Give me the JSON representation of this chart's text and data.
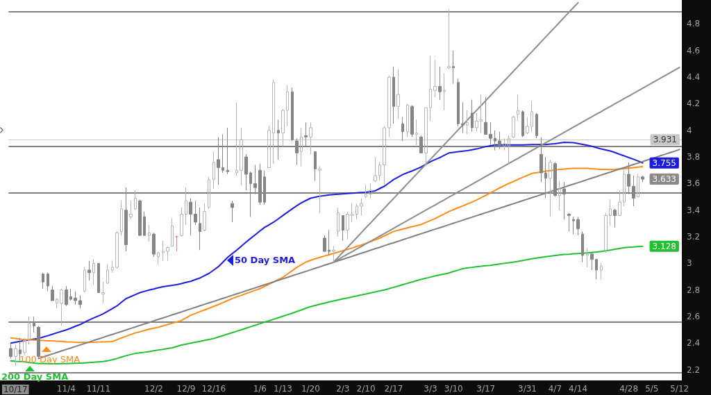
{
  "chart_data": {
    "type": "candlestick",
    "categories": [
      null,
      "10/17",
      null,
      null,
      null,
      null,
      null,
      null,
      null,
      null,
      null,
      null,
      "11/4",
      null,
      null,
      null,
      null,
      null,
      null,
      "11/11",
      null,
      null,
      null,
      null,
      null,
      null,
      null,
      null,
      null,
      null,
      null,
      "12/2",
      null,
      null,
      null,
      null,
      null,
      null,
      "12/9",
      null,
      null,
      null,
      null,
      null,
      "12/16",
      null,
      null,
      null,
      null,
      null,
      null,
      null,
      null,
      null,
      "1/6",
      null,
      null,
      null,
      null,
      "1/13",
      null,
      null,
      null,
      null,
      null,
      "1/20",
      null,
      null,
      null,
      null,
      null,
      null,
      "2/3",
      null,
      null,
      null,
      null,
      "2/10",
      null,
      null,
      null,
      null,
      null,
      "2/17",
      null,
      null,
      null,
      null,
      null,
      null,
      null,
      "3/3",
      null,
      null,
      null,
      null,
      "3/10",
      null,
      null,
      null,
      null,
      null,
      null,
      "3/17",
      null,
      null,
      null,
      null,
      null,
      null,
      null,
      null,
      "3/31",
      null,
      null,
      null,
      null,
      null,
      "4/7",
      null,
      null,
      null,
      null,
      "4/14",
      null,
      null,
      null,
      null,
      null,
      null,
      null,
      null,
      null,
      null,
      "4/28",
      null,
      null,
      null,
      null,
      "5/5",
      null,
      null,
      null,
      null,
      null,
      "5/12"
    ],
    "ohlc": [
      [
        2.36,
        2.4,
        2.285,
        2.3
      ],
      [
        2.3,
        2.39,
        2.23,
        2.36
      ],
      [
        2.35,
        2.44,
        2.27,
        2.32
      ],
      [
        2.33,
        2.44,
        2.31,
        2.42
      ],
      [
        2.42,
        2.6,
        2.39,
        2.55
      ],
      [
        2.55,
        2.6,
        2.48,
        2.53
      ],
      [
        2.52,
        2.53,
        2.285,
        2.3
      ],
      [
        2.92,
        2.93,
        2.81,
        2.86
      ],
      [
        2.92,
        2.93,
        2.79,
        2.83
      ],
      [
        2.8,
        2.83,
        2.72,
        2.72
      ],
      [
        2.7,
        2.74,
        2.66,
        2.73
      ],
      [
        2.7,
        2.81,
        2.53,
        2.8
      ],
      [
        2.8,
        2.83,
        2.68,
        2.69
      ],
      [
        2.75,
        2.81,
        2.72,
        2.73
      ],
      [
        2.74,
        2.79,
        2.69,
        2.72
      ],
      [
        2.72,
        2.76,
        2.66,
        2.69
      ],
      [
        2.79,
        2.97,
        2.78,
        2.95
      ],
      [
        2.95,
        3.02,
        2.87,
        2.93
      ],
      [
        2.93,
        3.03,
        2.84,
        3.0
      ],
      [
        3.0,
        3.0,
        2.78,
        2.78
      ],
      [
        2.77,
        2.86,
        2.7,
        2.78
      ],
      [
        2.85,
        2.99,
        2.85,
        2.95
      ],
      [
        2.95,
        3.02,
        2.93,
        2.97
      ],
      [
        2.97,
        3.24,
        2.96,
        3.23
      ],
      [
        3.24,
        3.47,
        3.21,
        3.41
      ],
      [
        3.4,
        3.57,
        3.09,
        3.14
      ],
      [
        3.35,
        3.47,
        3.33,
        3.37
      ],
      [
        3.41,
        3.55,
        3.4,
        3.49
      ],
      [
        3.47,
        3.48,
        3.21,
        3.21
      ],
      [
        3.35,
        3.39,
        3.21,
        3.21
      ],
      [
        3.21,
        3.29,
        3.16,
        3.23
      ],
      [
        3.22,
        3.23,
        3.05,
        3.07
      ],
      [
        3.05,
        3.09,
        2.99,
        3.08
      ],
      [
        3.08,
        3.17,
        3.02,
        3.09
      ],
      [
        3.09,
        3.13,
        3.02,
        3.12
      ],
      [
        3.13,
        3.34,
        3.13,
        3.28
      ],
      [
        3.2,
        3.21,
        3.09,
        3.2
      ],
      [
        3.21,
        3.42,
        3.2,
        3.37
      ],
      [
        3.37,
        3.57,
        3.29,
        3.47
      ],
      [
        3.46,
        3.49,
        3.21,
        3.37
      ],
      [
        3.37,
        3.47,
        3.29,
        3.31
      ],
      [
        3.3,
        3.42,
        3.1,
        3.24
      ],
      [
        3.25,
        3.45,
        3.24,
        3.39
      ],
      [
        3.42,
        3.65,
        3.41,
        3.63
      ],
      [
        3.63,
        3.84,
        3.56,
        3.76
      ],
      [
        3.78,
        3.95,
        3.59,
        3.72
      ],
      [
        3.72,
        3.97,
        3.68,
        3.7
      ],
      [
        3.7,
        4.02,
        3.67,
        3.69
      ],
      [
        3.45,
        3.47,
        3.31,
        3.42
      ],
      [
        3.68,
        4.21,
        3.66,
        3.7
      ],
      [
        3.7,
        4.02,
        3.59,
        3.93
      ],
      [
        3.8,
        3.82,
        3.55,
        3.67
      ],
      [
        3.68,
        3.69,
        3.35,
        3.6
      ],
      [
        3.6,
        3.74,
        3.52,
        3.57
      ],
      [
        3.7,
        3.75,
        3.44,
        3.46
      ],
      [
        3.65,
        3.7,
        3.44,
        3.46
      ],
      [
        3.72,
        4.03,
        3.72,
        4.0
      ],
      [
        3.98,
        4.38,
        3.75,
        4.36
      ],
      [
        4.0,
        4.08,
        3.78,
        3.98
      ],
      [
        3.98,
        4.16,
        3.88,
        4.15
      ],
      [
        4.15,
        4.34,
        4.03,
        4.29
      ],
      [
        4.29,
        4.32,
        3.92,
        3.93
      ],
      [
        3.92,
        3.94,
        3.74,
        3.83
      ],
      [
        3.84,
        4.02,
        3.73,
        3.95
      ],
      [
        3.96,
        4.06,
        3.88,
        3.95
      ],
      [
        3.95,
        4.06,
        3.82,
        4.02
      ],
      [
        3.84,
        3.84,
        3.62,
        3.71
      ],
      [
        3.7,
        3.73,
        3.38,
        3.71
      ],
      [
        3.19,
        3.21,
        3.09,
        3.09
      ],
      [
        3.1,
        3.25,
        3.06,
        3.09
      ],
      [
        3.09,
        3.13,
        3.01,
        3.1
      ],
      [
        3.24,
        3.42,
        3.2,
        3.38
      ],
      [
        3.36,
        3.36,
        3.17,
        3.25
      ],
      [
        3.25,
        3.39,
        3.18,
        3.37
      ],
      [
        3.36,
        3.45,
        3.31,
        3.37
      ],
      [
        3.37,
        3.45,
        3.33,
        3.43
      ],
      [
        3.43,
        3.49,
        3.36,
        3.45
      ],
      [
        3.5,
        3.59,
        3.49,
        3.52
      ],
      [
        3.52,
        3.6,
        3.49,
        3.55
      ],
      [
        3.62,
        3.8,
        3.61,
        3.66
      ],
      [
        3.66,
        3.76,
        3.62,
        3.74
      ],
      [
        3.74,
        4.03,
        3.59,
        4.02
      ],
      [
        4.02,
        4.41,
        3.95,
        4.4
      ],
      [
        4.4,
        4.48,
        4.05,
        4.18
      ],
      [
        4.18,
        4.46,
        4.09,
        4.27
      ],
      [
        4.05,
        4.1,
        3.92,
        3.99
      ],
      [
        3.99,
        4.2,
        3.95,
        4.19
      ],
      [
        4.18,
        4.19,
        3.95,
        3.97
      ],
      [
        3.97,
        4.08,
        3.89,
        3.98
      ],
      [
        3.95,
        3.96,
        3.83,
        3.83
      ],
      [
        3.83,
        4.17,
        3.73,
        4.17
      ],
      [
        4.17,
        4.56,
        4.07,
        4.31
      ],
      [
        4.3,
        4.53,
        4.25,
        4.33
      ],
      [
        4.33,
        4.48,
        4.23,
        4.29
      ],
      [
        4.29,
        4.43,
        4.15,
        4.3
      ],
      [
        4.47,
        4.91,
        4.46,
        4.48
      ],
      [
        4.48,
        4.6,
        4.35,
        4.47
      ],
      [
        4.36,
        4.39,
        4.03,
        4.05
      ],
      [
        4.05,
        4.21,
        3.98,
        4.04
      ],
      [
        4.04,
        4.15,
        3.97,
        4.06
      ],
      [
        4.13,
        4.23,
        3.99,
        4.02
      ],
      [
        4.02,
        4.13,
        3.99,
        4.07
      ],
      [
        4.07,
        4.27,
        3.98,
        4.08
      ],
      [
        4.06,
        4.25,
        3.97,
        3.97
      ],
      [
        3.97,
        4.06,
        3.89,
        3.94
      ],
      [
        3.94,
        4.0,
        3.85,
        3.92
      ],
      [
        3.92,
        3.99,
        3.86,
        3.89
      ],
      [
        3.88,
        3.94,
        3.85,
        3.9
      ],
      [
        3.88,
        3.96,
        3.75,
        3.94
      ],
      [
        3.95,
        4.11,
        3.94,
        4.1
      ],
      [
        4.12,
        4.27,
        4.07,
        4.15
      ],
      [
        4.14,
        4.15,
        3.95,
        3.96
      ],
      [
        3.98,
        4.1,
        3.97,
        4.03
      ],
      [
        4.03,
        4.22,
        3.99,
        4.14
      ],
      [
        4.12,
        4.13,
        3.94,
        3.96
      ],
      [
        3.82,
        3.95,
        3.61,
        3.68
      ],
      [
        3.68,
        3.8,
        3.49,
        3.64
      ],
      [
        3.64,
        3.78,
        3.35,
        3.76
      ],
      [
        3.75,
        3.76,
        3.5,
        3.51
      ],
      [
        3.51,
        3.62,
        3.4,
        3.56
      ],
      [
        3.56,
        3.61,
        3.33,
        3.52
      ],
      [
        3.37,
        3.38,
        3.24,
        3.36
      ],
      [
        3.33,
        3.35,
        3.22,
        3.32
      ],
      [
        3.33,
        3.35,
        3.21,
        3.26
      ],
      [
        3.22,
        3.24,
        3.01,
        3.06
      ],
      [
        3.06,
        3.11,
        2.97,
        3.07
      ],
      [
        3.07,
        3.09,
        2.95,
        3.03
      ],
      [
        3.03,
        3.03,
        2.88,
        2.95
      ],
      [
        2.95,
        3.0,
        2.88,
        2.98
      ],
      [
        3.1,
        3.38,
        3.08,
        3.36
      ],
      [
        3.36,
        3.48,
        3.28,
        3.41
      ],
      [
        3.4,
        3.41,
        3.27,
        3.36
      ],
      [
        3.36,
        3.55,
        3.36,
        3.46
      ],
      [
        3.46,
        3.7,
        3.43,
        3.67
      ],
      [
        3.67,
        3.76,
        3.52,
        3.58
      ],
      [
        3.58,
        3.66,
        3.43,
        3.49
      ],
      [
        3.5,
        3.67,
        3.5,
        3.65
      ],
      [
        3.65,
        3.66,
        3.61,
        3.633
      ],
      null,
      null,
      null,
      null,
      null,
      null,
      null,
      null
    ],
    "colors": [
      "#858585",
      "#b4b4b4",
      "#858585",
      "#b4b4b4",
      "#b4b4b4",
      "#858585",
      "#858585",
      "#858585",
      "#858585",
      "#858585",
      "#b4b4b4",
      "#b4b4b4",
      "#858585",
      "#858585",
      "#858585",
      "#858585",
      "#b4b4b4",
      "#858585",
      "#b4b4b4",
      "#858585",
      "#b4b4b4",
      "#b4b4b4",
      "#b4b4b4",
      "#b4b4b4",
      "#b4b4b4",
      "#858585",
      "#b4b4b4",
      "#b4b4b4",
      "#858585",
      "#858585",
      "#b4b4b4",
      "#858585",
      "#b4b4b4",
      "#b4b4b4",
      "#b4b4b4",
      "#b4b4b4",
      "#f07ca0",
      "#b4b4b4",
      "#b4b4b4",
      "#858585",
      "#858585",
      "#858585",
      "#b4b4b4",
      "#b4b4b4",
      "#b4b4b4",
      "#858585",
      "#858585",
      "#858585",
      "#858585",
      "#b4b4b4",
      "#b4b4b4",
      "#858585",
      "#858585",
      "#858585",
      "#858585",
      "#858585",
      "#b4b4b4",
      "#b4b4b4",
      "#858585",
      "#b4b4b4",
      "#b4b4b4",
      "#858585",
      "#858585",
      "#b4b4b4",
      "#858585",
      "#b4b4b4",
      "#858585",
      "#b4b4b4",
      "#858585",
      "#858585",
      "#b4b4b4",
      "#b4b4b4",
      "#858585",
      "#b4b4b4",
      "#b4b4b4",
      "#b4b4b4",
      "#b4b4b4",
      "#b4b4b4",
      "#b4b4b4",
      "#b4b4b4",
      "#b4b4b4",
      "#b4b4b4",
      "#b4b4b4",
      "#858585",
      "#b4b4b4",
      "#858585",
      "#b4b4b4",
      "#858585",
      "#b4b4b4",
      "#858585",
      "#b4b4b4",
      "#b4b4b4",
      "#b4b4b4",
      "#858585",
      "#b4b4b4",
      "#b4b4b4",
      "#858585",
      "#858585",
      "#858585",
      "#b4b4b4",
      "#858585",
      "#b4b4b4",
      "#b4b4b4",
      "#858585",
      "#858585",
      "#858585",
      "#858585",
      "#b4b4b4",
      "#b4b4b4",
      "#b4b4b4",
      "#b4b4b4",
      "#858585",
      "#b4b4b4",
      "#b4b4b4",
      "#858585",
      "#858585",
      "#858585",
      "#b4b4b4",
      "#858585",
      "#b4b4b4",
      "#858585",
      "#858585",
      "#858585",
      "#858585",
      "#858585",
      "#b4b4b4",
      "#858585",
      "#858585",
      "#b4b4b4",
      "#b4b4b4",
      "#b4b4b4",
      "#858585",
      "#b4b4b4",
      "#b4b4b4",
      "#858585",
      "#858585",
      "#b4b4b4",
      "#858585",
      null,
      null,
      null,
      null,
      null,
      null,
      null,
      null
    ],
    "series": [
      {
        "name": "50 Day SMA",
        "type": "line",
        "color": "#1c1cdc",
        "values": [
          2.4,
          2.407,
          2.413,
          2.42,
          2.425,
          2.43,
          2.435,
          2.446,
          2.456,
          2.467,
          2.478,
          2.489,
          2.5,
          2.513,
          2.527,
          2.54,
          2.558,
          2.575,
          2.59,
          2.605,
          2.62,
          2.64,
          2.66,
          2.68,
          2.708,
          2.735,
          2.75,
          2.765,
          2.78,
          2.79,
          2.8,
          2.808,
          2.817,
          2.825,
          2.83,
          2.835,
          2.84,
          2.848,
          2.857,
          2.865,
          2.878,
          2.89,
          2.908,
          2.925,
          2.95,
          2.975,
          3.01,
          3.045,
          3.073,
          3.1,
          3.13,
          3.16,
          3.188,
          3.215,
          3.243,
          3.27,
          3.29,
          3.31,
          3.335,
          3.36,
          3.385,
          3.41,
          3.433,
          3.455,
          3.473,
          3.49,
          3.498,
          3.505,
          3.51,
          3.515,
          3.518,
          3.52,
          3.523,
          3.525,
          3.528,
          3.53,
          3.533,
          3.535,
          3.54,
          3.545,
          3.563,
          3.58,
          3.605,
          3.63,
          3.649,
          3.668,
          3.682,
          3.695,
          3.71,
          3.725,
          3.745,
          3.765,
          3.78,
          3.795,
          3.813,
          3.83,
          3.835,
          3.84,
          3.844,
          3.848,
          3.854,
          3.86,
          3.869,
          3.878,
          3.884,
          3.89,
          3.891,
          3.892,
          3.891,
          3.89,
          3.89,
          3.891,
          3.892,
          3.893,
          3.893,
          3.893,
          3.893,
          3.897,
          3.9,
          3.905,
          3.91,
          3.909,
          3.907,
          3.901,
          3.895,
          3.888,
          3.88,
          3.87,
          3.86,
          3.853,
          3.845,
          3.833,
          3.82,
          3.808,
          3.795,
          3.783,
          3.77,
          3.755,
          null,
          null,
          null,
          null,
          null,
          null,
          null,
          null
        ],
        "value_labels": [
          null,
          null,
          null,
          null,
          null,
          null,
          null,
          null,
          null,
          null,
          null,
          null,
          null,
          null,
          null,
          null,
          null,
          null,
          null,
          null,
          null,
          null,
          null,
          null,
          null,
          null,
          null,
          null,
          null,
          null,
          null,
          null,
          null,
          null,
          null,
          null,
          null,
          null,
          null,
          null,
          null,
          null,
          null,
          null,
          null,
          null,
          null,
          null,
          null,
          null,
          null,
          null,
          null,
          null,
          null,
          null,
          null,
          null,
          null,
          null,
          null,
          null,
          null,
          null,
          null,
          null,
          null,
          null,
          null,
          null,
          null,
          null,
          null,
          null,
          null,
          null,
          null,
          null,
          null,
          null,
          null,
          null,
          null,
          null,
          null,
          null,
          null,
          null,
          null,
          null,
          null,
          null,
          null,
          null,
          null,
          null,
          null,
          null,
          null,
          null,
          null,
          null,
          null,
          null,
          null,
          null,
          null,
          null,
          null,
          null,
          null,
          null,
          null,
          null,
          null,
          null,
          null,
          null,
          null,
          null,
          null,
          null,
          null,
          null,
          null,
          null,
          null,
          null,
          null,
          null,
          null,
          null,
          null,
          null,
          null,
          null,
          null,
          "3.755",
          null,
          null,
          null,
          null,
          null,
          null,
          null,
          null
        ]
      },
      {
        "name": "100 Day SMA",
        "type": "line",
        "color": "#ff8c1a",
        "values": [
          2.44,
          2.436,
          2.431,
          2.427,
          2.426,
          2.424,
          2.422,
          2.42,
          2.418,
          2.417,
          2.415,
          2.413,
          2.41,
          2.409,
          2.407,
          2.406,
          2.406,
          2.406,
          2.407,
          2.409,
          2.41,
          2.411,
          2.412,
          2.426,
          2.44,
          2.452,
          2.465,
          2.477,
          2.486,
          2.496,
          2.505,
          2.513,
          2.52,
          2.53,
          2.54,
          2.55,
          2.56,
          2.571,
          2.59,
          2.61,
          2.623,
          2.637,
          2.65,
          2.663,
          2.677,
          2.69,
          2.705,
          2.72,
          2.735,
          2.748,
          2.76,
          2.773,
          2.785,
          2.798,
          2.81,
          2.827,
          2.843,
          2.86,
          2.878,
          2.895,
          2.92,
          2.945,
          2.97,
          2.99,
          3.01,
          3.023,
          3.035,
          3.045,
          3.055,
          3.065,
          3.075,
          3.085,
          3.095,
          3.105,
          3.115,
          3.127,
          3.138,
          3.15,
          3.163,
          3.177,
          3.19,
          3.207,
          3.223,
          3.24,
          3.249,
          3.258,
          3.267,
          3.276,
          3.284,
          3.293,
          3.308,
          3.322,
          3.337,
          3.355,
          3.372,
          3.39,
          3.404,
          3.418,
          3.432,
          3.447,
          3.461,
          3.476,
          3.494,
          3.512,
          3.53,
          3.548,
          3.567,
          3.585,
          3.601,
          3.616,
          3.632,
          3.647,
          3.661,
          3.676,
          3.682,
          3.687,
          3.693,
          3.698,
          3.702,
          3.707,
          3.709,
          3.712,
          3.714,
          3.714,
          3.714,
          3.714,
          3.712,
          3.709,
          3.707,
          3.706,
          3.705,
          3.707,
          3.71,
          3.712,
          3.716,
          3.72,
          3.724,
          3.728,
          null,
          null,
          null,
          null,
          null,
          null,
          null,
          null
        ]
      },
      {
        "name": "200 Day SMA",
        "type": "line",
        "color": "#20c030",
        "values": [
          2.267,
          2.264,
          2.262,
          2.259,
          2.255,
          2.25,
          2.246,
          2.246,
          2.246,
          2.245,
          2.245,
          2.246,
          2.247,
          2.248,
          2.249,
          2.25,
          2.252,
          2.255,
          2.257,
          2.26,
          2.262,
          2.268,
          2.275,
          2.285,
          2.296,
          2.306,
          2.315,
          2.323,
          2.328,
          2.332,
          2.337,
          2.343,
          2.349,
          2.354,
          2.36,
          2.365,
          2.376,
          2.386,
          2.393,
          2.4,
          2.407,
          2.414,
          2.421,
          2.428,
          2.435,
          2.446,
          2.457,
          2.468,
          2.479,
          2.49,
          2.501,
          2.513,
          2.524,
          2.535,
          2.546,
          2.558,
          2.569,
          2.58,
          2.591,
          2.603,
          2.614,
          2.625,
          2.638,
          2.65,
          2.663,
          2.675,
          2.684,
          2.693,
          2.701,
          2.71,
          2.718,
          2.725,
          2.733,
          2.74,
          2.748,
          2.755,
          2.763,
          2.77,
          2.778,
          2.785,
          2.793,
          2.8,
          2.81,
          2.82,
          2.83,
          2.84,
          2.85,
          2.86,
          2.87,
          2.88,
          2.888,
          2.897,
          2.905,
          2.913,
          2.92,
          2.928,
          2.939,
          2.949,
          2.96,
          2.965,
          2.97,
          2.975,
          2.978,
          2.982,
          2.985,
          2.99,
          2.995,
          3.0,
          3.005,
          3.01,
          3.015,
          3.022,
          3.028,
          3.035,
          3.04,
          3.045,
          3.05,
          3.054,
          3.059,
          3.063,
          3.067,
          3.069,
          3.072,
          3.074,
          3.076,
          3.079,
          3.082,
          3.085,
          3.09,
          3.095,
          3.1,
          3.106,
          3.112,
          3.118,
          3.121,
          3.123,
          3.126,
          3.128,
          null,
          null,
          null,
          null,
          null,
          null,
          null,
          null
        ],
        "value_labels": [
          null,
          null,
          null,
          null,
          null,
          null,
          null,
          null,
          null,
          null,
          null,
          null,
          null,
          null,
          null,
          null,
          null,
          null,
          null,
          null,
          null,
          null,
          null,
          null,
          null,
          null,
          null,
          null,
          null,
          null,
          null,
          null,
          null,
          null,
          null,
          null,
          null,
          null,
          null,
          null,
          null,
          null,
          null,
          null,
          null,
          null,
          null,
          null,
          null,
          null,
          null,
          null,
          null,
          null,
          null,
          null,
          null,
          null,
          null,
          null,
          null,
          null,
          null,
          null,
          null,
          null,
          null,
          null,
          null,
          null,
          null,
          null,
          null,
          null,
          null,
          null,
          null,
          null,
          null,
          null,
          null,
          null,
          null,
          null,
          null,
          null,
          null,
          null,
          null,
          null,
          null,
          null,
          null,
          null,
          null,
          null,
          null,
          null,
          null,
          null,
          null,
          null,
          null,
          null,
          null,
          null,
          null,
          null,
          null,
          null,
          null,
          null,
          null,
          null,
          null,
          null,
          null,
          null,
          null,
          null,
          null,
          null,
          null,
          null,
          null,
          null,
          null,
          null,
          null,
          null,
          null,
          null,
          null,
          null,
          null,
          null,
          null,
          "3.128",
          null,
          null,
          null,
          null,
          null,
          null,
          null,
          null
        ]
      },
      {
        "type": "line",
        "color": "#7f7f7f",
        "values": [
          null,
          null,
          null,
          null,
          null,
          null,
          2.285,
          2.296,
          2.308,
          2.319,
          2.33,
          2.342,
          2.353,
          2.364,
          2.375,
          2.387,
          2.398,
          2.409,
          2.421,
          2.432,
          2.443,
          2.455,
          2.466,
          2.477,
          2.488,
          2.5,
          2.511,
          2.522,
          2.534,
          2.545,
          2.556,
          2.568,
          2.579,
          2.59,
          2.601,
          2.613,
          2.624,
          2.635,
          2.647,
          2.658,
          2.669,
          2.681,
          2.692,
          2.703,
          2.714,
          2.726,
          2.737,
          2.748,
          2.76,
          2.771,
          2.782,
          2.794,
          2.805,
          2.816,
          2.827,
          2.839,
          2.85,
          2.861,
          2.873,
          2.884,
          2.895,
          2.907,
          2.918,
          2.929,
          2.94,
          2.952,
          2.963,
          2.974,
          2.986,
          2.997,
          3.008,
          3.02,
          3.031,
          3.042,
          3.053,
          3.065,
          3.076,
          3.087,
          3.099,
          3.11,
          3.121,
          3.133,
          3.144,
          3.155,
          3.166,
          3.178,
          3.189,
          3.2,
          3.212,
          3.223,
          3.234,
          3.246,
          3.257,
          3.268,
          3.279,
          3.291,
          3.302,
          3.313,
          3.325,
          3.336,
          3.347,
          3.359,
          3.37,
          3.381,
          3.392,
          3.404,
          3.415,
          3.426,
          3.438,
          3.449,
          3.46,
          3.472,
          3.483,
          3.494,
          3.505,
          3.517,
          3.528,
          3.539,
          3.551,
          3.562,
          3.573,
          3.585,
          3.596,
          3.607,
          3.618,
          3.63,
          3.641,
          3.652,
          3.664,
          3.675,
          3.686,
          3.698,
          3.709,
          3.72,
          3.731,
          3.743,
          3.754,
          3.765,
          3.777,
          3.788,
          3.799,
          3.811,
          3.822,
          3.833,
          3.844,
          3.856
        ]
      },
      {
        "type": "line",
        "color": "#8c8c8c",
        "values": [
          null,
          null,
          null,
          null,
          null,
          null,
          null,
          null,
          null,
          null,
          null,
          null,
          null,
          null,
          null,
          null,
          null,
          null,
          null,
          null,
          null,
          null,
          null,
          null,
          null,
          null,
          null,
          null,
          null,
          null,
          null,
          null,
          null,
          null,
          null,
          null,
          null,
          null,
          null,
          null,
          null,
          null,
          null,
          null,
          null,
          null,
          null,
          null,
          null,
          null,
          null,
          null,
          null,
          null,
          null,
          null,
          null,
          null,
          null,
          null,
          null,
          null,
          null,
          null,
          null,
          null,
          null,
          null,
          null,
          null,
          3.01,
          3.047,
          3.084,
          3.12,
          3.157,
          3.194,
          3.231,
          3.268,
          3.304,
          3.341,
          3.378,
          3.415,
          3.452,
          3.488,
          3.525,
          3.562,
          3.599,
          3.636,
          3.672,
          3.709,
          3.746,
          3.783,
          3.82,
          3.856,
          3.893,
          3.93,
          3.967,
          4.004,
          4.04,
          4.077,
          4.114,
          4.151,
          4.188,
          4.224,
          4.261,
          4.298,
          4.335,
          4.372,
          4.408,
          4.445,
          4.482,
          4.519,
          4.556,
          4.592,
          4.629,
          4.666,
          4.703,
          4.74,
          4.776,
          4.813,
          4.85,
          4.887,
          4.924,
          4.96,
          null,
          null,
          null,
          null,
          null,
          null,
          null,
          null,
          null,
          null,
          null,
          null,
          null,
          null,
          null,
          null,
          null,
          null,
          null,
          null,
          null,
          null
        ]
      },
      {
        "type": "line",
        "color": "#8c8c8c",
        "values": [
          null,
          null,
          null,
          null,
          null,
          null,
          null,
          null,
          null,
          null,
          null,
          null,
          null,
          null,
          null,
          null,
          null,
          null,
          null,
          null,
          null,
          null,
          null,
          null,
          null,
          null,
          null,
          null,
          null,
          null,
          null,
          null,
          null,
          null,
          null,
          null,
          null,
          null,
          null,
          null,
          null,
          null,
          null,
          null,
          null,
          null,
          null,
          null,
          null,
          null,
          null,
          null,
          null,
          null,
          null,
          null,
          null,
          null,
          null,
          null,
          null,
          null,
          null,
          null,
          null,
          null,
          null,
          null,
          null,
          null,
          3.01,
          3.03,
          3.049,
          3.069,
          3.088,
          3.108,
          3.127,
          3.147,
          3.166,
          3.186,
          3.205,
          3.225,
          3.244,
          3.264,
          3.283,
          3.303,
          3.322,
          3.342,
          3.361,
          3.381,
          3.4,
          3.42,
          3.439,
          3.459,
          3.478,
          3.498,
          3.517,
          3.537,
          3.556,
          3.576,
          3.595,
          3.615,
          3.634,
          3.654,
          3.673,
          3.693,
          3.712,
          3.732,
          3.751,
          3.771,
          3.79,
          3.81,
          3.829,
          3.849,
          3.868,
          3.888,
          3.907,
          3.927,
          3.946,
          3.966,
          3.985,
          4.005,
          4.024,
          4.044,
          4.063,
          4.083,
          4.102,
          4.122,
          4.141,
          4.161,
          4.18,
          4.2,
          4.219,
          4.239,
          4.258,
          4.278,
          4.297,
          4.317,
          4.336,
          4.356,
          4.375,
          4.395,
          4.414,
          4.434,
          4.453,
          4.473
        ]
      }
    ],
    "ylim": [
      2.12,
      4.98
    ],
    "yticks": [
      2.2,
      2.4,
      2.6,
      2.8,
      3,
      3.2,
      3.4,
      3.6,
      3.8,
      4,
      4.2,
      4.4,
      4.6,
      4.8
    ],
    "ref_lines": [
      {
        "axis": "y",
        "value": 4.89,
        "color": "#808080"
      },
      {
        "axis": "y",
        "value": 3.931,
        "label": "3.931",
        "color": "#c8c8c8"
      },
      {
        "axis": "y",
        "value": 3.88,
        "color": "#808080"
      },
      {
        "axis": "y",
        "value": 3.53,
        "color": "#808080"
      },
      {
        "axis": "y",
        "value": 2.56,
        "color": "#808080"
      },
      {
        "axis": "y",
        "value": 2.18,
        "color": "#808080"
      }
    ],
    "legend": "bottom left",
    "annotations": [
      {
        "text": "3.633",
        "y": 3.633
      }
    ]
  }
}
